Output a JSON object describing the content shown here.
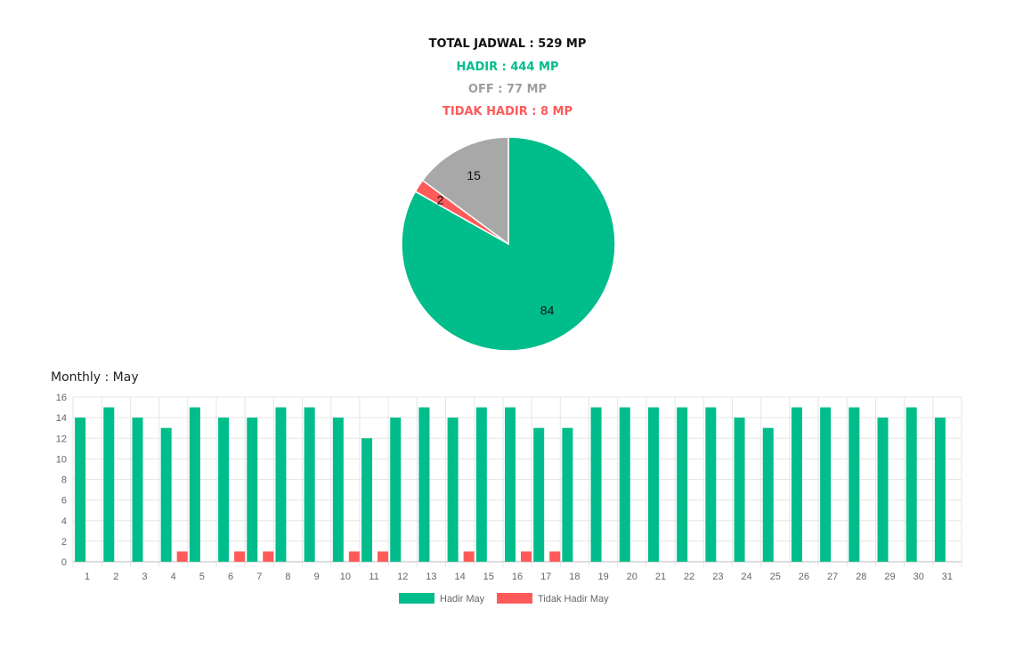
{
  "summary": {
    "total": "TOTAL JADWAL : 529 MP",
    "hadir": "HADIR : 444 MP",
    "off": "OFF : 77 MP",
    "tidak_hadir": "TIDAK HADIR : 8 MP"
  },
  "colors": {
    "hadir": "#00bd8b",
    "off": "#a8a8a8",
    "tidak_hadir": "#ff5a5a",
    "off_text": "#9e9e9e"
  },
  "chart_data": [
    {
      "type": "pie",
      "slices": [
        {
          "label": "Hadir",
          "value": 84,
          "color": "#00bd8b"
        },
        {
          "label": "Tidak Hadir",
          "value": 2,
          "color": "#ff5a5a"
        },
        {
          "label": "Off",
          "value": 15,
          "color": "#a8a8a8"
        }
      ]
    },
    {
      "type": "bar",
      "title": "Monthly : May",
      "categories": [
        "1",
        "2",
        "3",
        "4",
        "5",
        "6",
        "7",
        "8",
        "9",
        "10",
        "11",
        "12",
        "13",
        "14",
        "15",
        "16",
        "17",
        "18",
        "19",
        "20",
        "21",
        "22",
        "23",
        "24",
        "25",
        "26",
        "27",
        "28",
        "29",
        "30",
        "31"
      ],
      "series": [
        {
          "name": "Hadir May",
          "color": "#00bd8b",
          "values": [
            14,
            15,
            14,
            13,
            15,
            14,
            14,
            15,
            15,
            14,
            12,
            14,
            15,
            14,
            15,
            15,
            13,
            13,
            15,
            15,
            15,
            15,
            15,
            14,
            13,
            15,
            15,
            15,
            14,
            15,
            14
          ]
        },
        {
          "name": "Tidak Hadir May",
          "color": "#ff5a5a",
          "values": [
            0,
            0,
            0,
            1,
            0,
            1,
            1,
            0,
            0,
            1,
            1,
            0,
            0,
            1,
            0,
            1,
            1,
            0,
            0,
            0,
            0,
            0,
            0,
            0,
            0,
            0,
            0,
            0,
            0,
            0,
            0
          ]
        }
      ],
      "ylim": [
        0,
        16
      ],
      "yticks": [
        0,
        2,
        4,
        6,
        8,
        10,
        12,
        14,
        16
      ],
      "grid": true,
      "legend": "bottom-center"
    }
  ]
}
